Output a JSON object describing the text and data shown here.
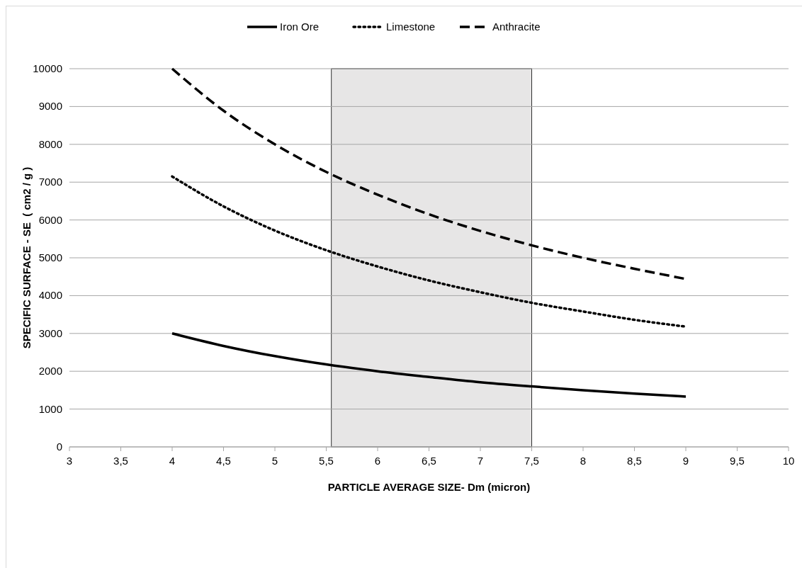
{
  "chart_data": {
    "type": "line",
    "xlabel": "PARTICLE AVERAGE SIZE- Dm (micron)",
    "ylabel": "SPECIFIC SURFACE - SE  ( cm2 / g )",
    "x": [
      4,
      4.5,
      5,
      5.5,
      6,
      6.5,
      7,
      7.5,
      8,
      8.5,
      9
    ],
    "series": [
      {
        "name": "Iron Ore",
        "color": "#000000",
        "line_style": "solid",
        "values": [
          3000,
          2670,
          2400,
          2180,
          2000,
          1850,
          1710,
          1600,
          1500,
          1410,
          1330
        ]
      },
      {
        "name": "Limestone",
        "color": "#000000",
        "line_style": "dotted",
        "values": [
          7150,
          6360,
          5720,
          5200,
          4770,
          4400,
          4090,
          3810,
          3580,
          3360,
          3180
        ]
      },
      {
        "name": "Anthracite",
        "color": "#000000",
        "line_style": "dashed",
        "values": [
          10000,
          8890,
          8000,
          7270,
          6670,
          6150,
          5710,
          5330,
          5000,
          4710,
          4440
        ]
      }
    ],
    "xlim": [
      3,
      10
    ],
    "xticks": [
      3,
      {
        "value": 3.5,
        "label": "3,5"
      },
      4,
      {
        "value": 4.5,
        "label": "4,5"
      },
      5,
      {
        "value": 5.5,
        "label": "5,5"
      },
      6,
      {
        "value": 6.5,
        "label": "6,5"
      },
      7,
      {
        "value": 7.5,
        "label": "7,5"
      },
      8,
      {
        "value": 8.5,
        "label": "8,5"
      },
      9,
      {
        "value": 9.5,
        "label": "9,5"
      },
      10
    ],
    "ylim": [
      0,
      10000
    ],
    "yticks": [
      0,
      1000,
      2000,
      3000,
      4000,
      5000,
      6000,
      7000,
      8000,
      9000,
      10000
    ],
    "bands": [
      {
        "axis": "x",
        "from": 5.55,
        "to": 7.5,
        "color": "#e7e6e6"
      }
    ],
    "grid": "y",
    "legend": "top",
    "marker": "none"
  }
}
